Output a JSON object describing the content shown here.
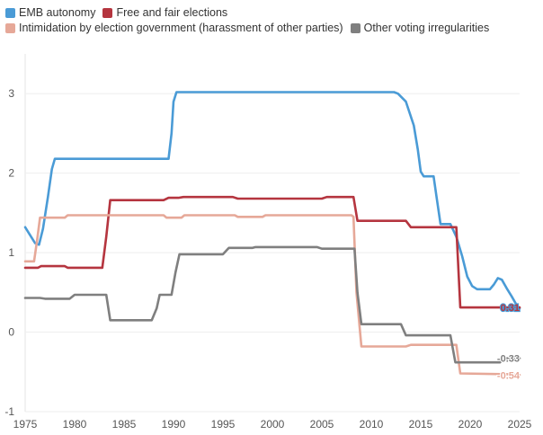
{
  "legend_rows": [
    [
      {
        "name": "EMB autonomy",
        "color": "#4a9bd6"
      },
      {
        "name": "Free and fair elections",
        "color": "#b5353f"
      }
    ],
    [
      {
        "name": "Intimidation by election government (harassment of other parties)",
        "color": "#e6a898"
      },
      {
        "name": "Other voting irregularities",
        "color": "#7f7f7f"
      }
    ]
  ],
  "chart_data": {
    "type": "line",
    "xlim": [
      1975,
      2025
    ],
    "ylim": [
      -1,
      3.5
    ],
    "x_ticks": [
      "1975",
      "1980",
      "1985",
      "1990",
      "1995",
      "2000",
      "2005",
      "2010",
      "2015",
      "2020",
      "2025"
    ],
    "y_ticks": [
      "3",
      "2",
      "1",
      "0",
      "-1"
    ],
    "y_tick_values": [
      3,
      2,
      1,
      0,
      -1
    ],
    "grid": "horizontal",
    "legend_position": "top-left",
    "series": [
      {
        "name": "EMB autonomy",
        "color": "#4a9bd6",
        "points": [
          [
            1975,
            1.32
          ],
          [
            1975.6,
            1.2
          ],
          [
            1976,
            1.12
          ],
          [
            1976.4,
            1.1
          ],
          [
            1976.8,
            1.3
          ],
          [
            1977.3,
            1.7
          ],
          [
            1977.7,
            2.05
          ],
          [
            1978,
            2.18
          ],
          [
            1989.5,
            2.18
          ],
          [
            1989.8,
            2.5
          ],
          [
            1990,
            2.9
          ],
          [
            1990.3,
            3.02
          ],
          [
            2012.3,
            3.02
          ],
          [
            2012.7,
            3.0
          ],
          [
            2013.5,
            2.9
          ],
          [
            2014.3,
            2.6
          ],
          [
            2014.7,
            2.3
          ],
          [
            2015,
            2.02
          ],
          [
            2015.3,
            1.96
          ],
          [
            2016.3,
            1.96
          ],
          [
            2016.6,
            1.7
          ],
          [
            2017,
            1.36
          ],
          [
            2018,
            1.36
          ],
          [
            2018.6,
            1.2
          ],
          [
            2019.2,
            0.95
          ],
          [
            2019.7,
            0.7
          ],
          [
            2020.2,
            0.58
          ],
          [
            2020.7,
            0.54
          ],
          [
            2022,
            0.54
          ],
          [
            2022.4,
            0.6
          ],
          [
            2022.8,
            0.68
          ],
          [
            2023.2,
            0.66
          ],
          [
            2023.7,
            0.55
          ],
          [
            2024.2,
            0.45
          ],
          [
            2024.7,
            0.34
          ],
          [
            2025,
            0.3
          ]
        ]
      },
      {
        "name": "Free and fair elections",
        "color": "#b5353f",
        "points": [
          [
            1975,
            0.81
          ],
          [
            1976.3,
            0.81
          ],
          [
            1976.6,
            0.83
          ],
          [
            1979,
            0.83
          ],
          [
            1979.3,
            0.81
          ],
          [
            1982.8,
            0.81
          ],
          [
            1983.2,
            1.2
          ],
          [
            1983.6,
            1.66
          ],
          [
            1989,
            1.66
          ],
          [
            1989.5,
            1.69
          ],
          [
            1990.5,
            1.69
          ],
          [
            1991,
            1.7
          ],
          [
            1996,
            1.7
          ],
          [
            1996.5,
            1.68
          ],
          [
            2005,
            1.68
          ],
          [
            2005.5,
            1.7
          ],
          [
            2008.2,
            1.7
          ],
          [
            2008.6,
            1.4
          ],
          [
            2013.5,
            1.4
          ],
          [
            2014,
            1.32
          ],
          [
            2018.6,
            1.32
          ],
          [
            2019,
            0.31
          ],
          [
            2025,
            0.31
          ]
        ]
      },
      {
        "name": "Intimidation by election government (harassment of other parties)",
        "color": "#e6a898",
        "points": [
          [
            1975,
            0.89
          ],
          [
            1975.9,
            0.89
          ],
          [
            1976.2,
            1.15
          ],
          [
            1976.5,
            1.44
          ],
          [
            1979,
            1.44
          ],
          [
            1979.3,
            1.47
          ],
          [
            1989,
            1.47
          ],
          [
            1989.3,
            1.44
          ],
          [
            1990.8,
            1.44
          ],
          [
            1991.1,
            1.47
          ],
          [
            1996.2,
            1.47
          ],
          [
            1996.5,
            1.45
          ],
          [
            1999,
            1.45
          ],
          [
            1999.3,
            1.47
          ],
          [
            2008,
            1.47
          ],
          [
            2008.2,
            1.45
          ],
          [
            2008.5,
            0.5
          ],
          [
            2009,
            -0.18
          ],
          [
            2013.5,
            -0.18
          ],
          [
            2014,
            -0.16
          ],
          [
            2018.6,
            -0.16
          ],
          [
            2019,
            -0.52
          ],
          [
            2024,
            -0.53
          ],
          [
            2025,
            -0.54
          ]
        ]
      },
      {
        "name": "Other voting irregularities",
        "color": "#7f7f7f",
        "points": [
          [
            1975,
            0.43
          ],
          [
            1976.5,
            0.43
          ],
          [
            1977,
            0.42
          ],
          [
            1979.5,
            0.42
          ],
          [
            1980,
            0.47
          ],
          [
            1983.2,
            0.47
          ],
          [
            1983.6,
            0.15
          ],
          [
            1987.8,
            0.15
          ],
          [
            1988.3,
            0.3
          ],
          [
            1988.6,
            0.47
          ],
          [
            1989.8,
            0.47
          ],
          [
            1990.2,
            0.75
          ],
          [
            1990.6,
            0.98
          ],
          [
            1995,
            0.98
          ],
          [
            1995.6,
            1.06
          ],
          [
            1998,
            1.06
          ],
          [
            1998.3,
            1.07
          ],
          [
            2004.5,
            1.07
          ],
          [
            2005,
            1.05
          ],
          [
            2008.3,
            1.05
          ],
          [
            2008.6,
            0.5
          ],
          [
            2009,
            0.1
          ],
          [
            2013,
            0.1
          ],
          [
            2013.5,
            -0.04
          ],
          [
            2018,
            -0.04
          ],
          [
            2018.5,
            -0.38
          ],
          [
            2023,
            -0.38
          ],
          [
            2023.5,
            -0.33
          ],
          [
            2025,
            -0.33
          ]
        ]
      }
    ],
    "end_labels": [
      {
        "text": "0.31",
        "value": 0.31,
        "color": "#b5353f",
        "outline": "#4a9bd6"
      },
      {
        "text": "-0.33",
        "value": -0.33,
        "color": "#7f7f7f",
        "outline": "#ffffff"
      },
      {
        "text": "-0.54",
        "value": -0.54,
        "color": "#e6a898",
        "outline": "#ffffff"
      }
    ]
  }
}
